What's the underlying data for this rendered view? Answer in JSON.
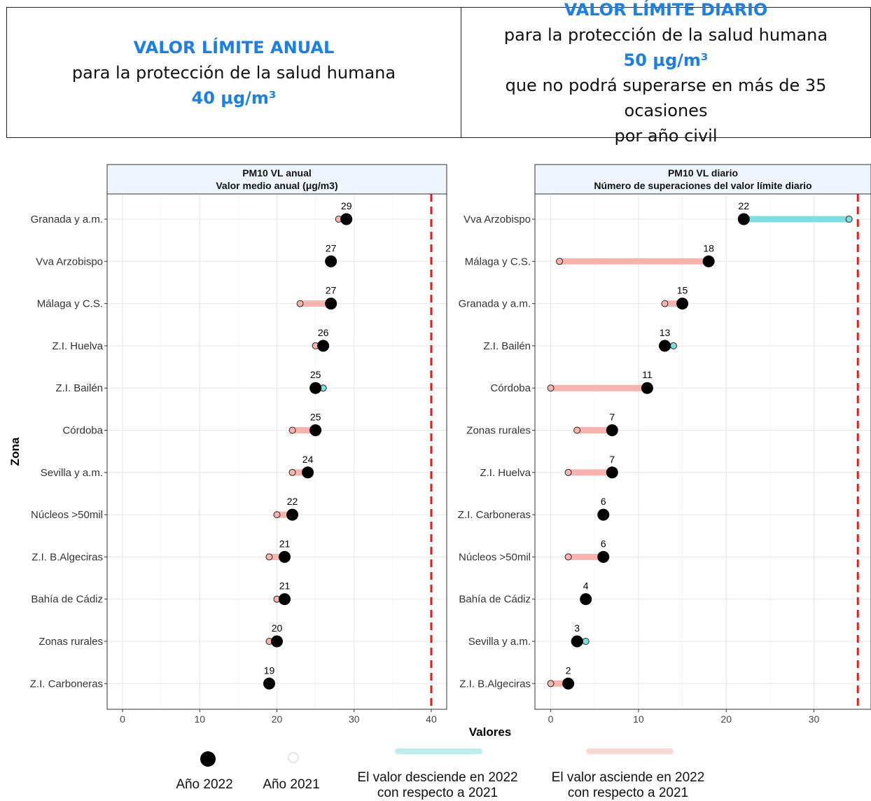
{
  "header": {
    "left": {
      "title": "VALOR LÍMITE ANUAL",
      "line1": "para la protección de la salud humana",
      "value": "40 μg/m³"
    },
    "right": {
      "title": "VALOR LÍMITE DIARIO",
      "line1": "para la protección de la salud humana",
      "value": "50 μg/m³",
      "line2": "que no podrá superarse en más de 35 ocasiones",
      "line3": "por año civil"
    }
  },
  "chart_data": [
    {
      "type": "dumbbell",
      "title": "PM10 VL anual",
      "subtitle": "Valor medio anual (μg/m3)",
      "ylabel": "Zona",
      "xlim": [
        -2,
        42
      ],
      "xticks": [
        0,
        10,
        20,
        30,
        40
      ],
      "limit": 40,
      "categories": [
        "Granada y a.m.",
        "Vva Arzobispo",
        "Málaga y C.S.",
        "Z.I. Huelva",
        "Z.I. Bailén",
        "Córdoba",
        "Sevilla y a.m.",
        "Núcleos >50mil",
        "Z.I. B.Algeciras",
        "Bahía de Cádiz",
        "Zonas rurales",
        "Z.I. Carboneras"
      ],
      "series": [
        {
          "name": "Año 2022",
          "values": [
            29,
            27,
            27,
            26,
            25,
            25,
            24,
            22,
            21,
            21,
            20,
            19
          ]
        },
        {
          "name": "Año 2021",
          "values": [
            28,
            27,
            23,
            25,
            26,
            22,
            22,
            20,
            19,
            20,
            19,
            19
          ]
        }
      ]
    },
    {
      "type": "dumbbell",
      "title": "PM10 VL diario",
      "subtitle": "Número de superaciones del valor límite diario",
      "xlim": [
        -1.8,
        36.5
      ],
      "xticks": [
        0,
        10,
        20,
        30
      ],
      "limit": 35,
      "categories": [
        "Vva Arzobispo",
        "Málaga y C.S.",
        "Granada y a.m.",
        "Z.I. Bailén",
        "Córdoba",
        "Zonas rurales",
        "Z.I. Huelva",
        "Z.I. Carboneras",
        "Núcleos >50mil",
        "Bahía de Cádiz",
        "Sevilla y a.m.",
        "Z.I. B.Algeciras"
      ],
      "series": [
        {
          "name": "Año 2022",
          "values": [
            22,
            18,
            15,
            13,
            11,
            7,
            7,
            6,
            6,
            4,
            3,
            2
          ]
        },
        {
          "name": "Año 2021",
          "values": [
            34,
            1,
            13,
            14,
            0,
            3,
            2,
            6,
            2,
            4,
            4,
            0
          ]
        }
      ]
    }
  ],
  "xlabel": "Valores",
  "colors": {
    "descend": "#7fdfdf",
    "ascend": "#f8b3ae",
    "limit": "#e8191c"
  },
  "legend": [
    {
      "key": "dot2022",
      "label": "Año 2022"
    },
    {
      "key": "dot2021",
      "label": "Año 2021"
    },
    {
      "key": "descend",
      "label1": "El valor desciende en 2022",
      "label2": "con respecto a 2021"
    },
    {
      "key": "ascend",
      "label1": "El valor asciende en 2022",
      "label2": "con respecto a 2021"
    }
  ]
}
